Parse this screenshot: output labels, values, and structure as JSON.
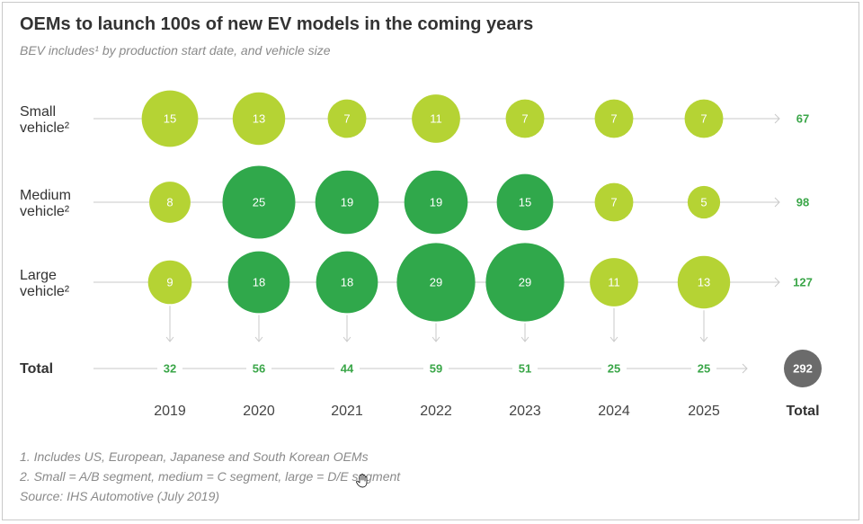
{
  "header": {
    "title": "OEMs to launch 100s of new EV models in the coming years",
    "subtitle": "BEV includes¹ by production start date, and vehicle size"
  },
  "footnotes": [
    "1.  Includes US, European, Japanese and South Korean OEMs",
    "2.  Small = A/B segment, medium = C segment, large = D/E segment",
    "Source: IHS Automotive (July 2019)"
  ],
  "colors": {
    "light_green": "#b5d334",
    "dark_green": "#30a84b",
    "total_text_green": "#3aa648",
    "grand_total_circle": "#6b6b6b",
    "arrow_line": "#c9c9c9"
  },
  "chart_data": {
    "type": "bubble",
    "categories": [
      "2019",
      "2020",
      "2021",
      "2022",
      "2023",
      "2024",
      "2025"
    ],
    "series": [
      {
        "name_lines": [
          "Small",
          "vehicle²"
        ],
        "values": [
          15,
          13,
          7,
          11,
          7,
          7,
          7
        ],
        "row_total": "67",
        "dark": [
          false,
          false,
          false,
          false,
          false,
          false,
          false
        ]
      },
      {
        "name_lines": [
          "Medium",
          "vehicle²"
        ],
        "values": [
          8,
          25,
          19,
          19,
          15,
          7,
          5
        ],
        "row_total": "98",
        "dark": [
          false,
          true,
          true,
          true,
          true,
          false,
          false
        ]
      },
      {
        "name_lines": [
          "Large",
          "vehicle²"
        ],
        "values": [
          9,
          18,
          18,
          29,
          29,
          11,
          13
        ],
        "row_total": "127",
        "dark": [
          false,
          true,
          true,
          true,
          true,
          false,
          false
        ]
      }
    ],
    "totals_row_label": "Total",
    "column_totals": [
      "32",
      "56",
      "44",
      "59",
      "51",
      "25",
      "25"
    ],
    "total_column_label": "Total",
    "grand_total": "292"
  }
}
